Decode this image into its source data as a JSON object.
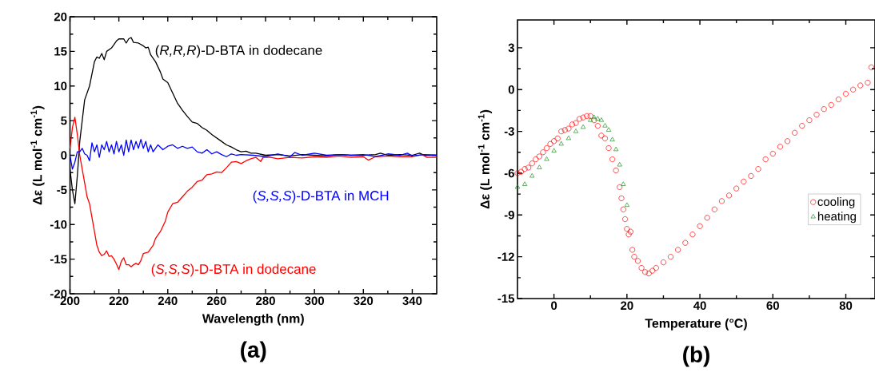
{
  "chart_data": [
    {
      "type": "line",
      "title": "(a)",
      "xlabel": "Wavelength (nm)",
      "ylabel": "Δε (L mol$^{-1}$ cm$^{-1}$)",
      "xlim": [
        200,
        350
      ],
      "ylim": [
        -20,
        20
      ],
      "xticks": [
        200,
        220,
        240,
        260,
        280,
        300,
        320,
        340
      ],
      "yticks": [
        -20,
        -15,
        -10,
        -5,
        0,
        5,
        10,
        15,
        20
      ],
      "series": [
        {
          "name": "(*R,R,R*)-D-BTA in dodecane",
          "color": "#000000",
          "x": [
            200,
            201,
            202,
            203,
            204,
            205,
            206,
            208,
            210,
            211,
            212,
            213,
            214,
            215,
            217,
            219,
            220,
            222,
            223,
            224,
            225,
            226,
            228,
            230,
            231,
            232,
            233,
            235,
            237,
            238,
            240,
            242,
            244,
            246,
            248,
            250,
            252,
            254,
            256,
            258,
            260,
            262,
            264,
            266,
            268,
            270,
            272,
            274,
            276,
            280,
            285,
            290,
            295,
            300,
            305,
            310,
            315,
            320,
            325,
            327,
            330,
            335,
            340,
            343,
            345,
            350
          ],
          "values": [
            -2,
            -5,
            -7,
            -3,
            2,
            5,
            8,
            10,
            13.5,
            14.2,
            14,
            14.7,
            13.8,
            15,
            15.5,
            16.5,
            16.8,
            16.8,
            16.2,
            16.8,
            17,
            16.3,
            16.2,
            15.8,
            15.5,
            15.6,
            14.5,
            13.5,
            12,
            11,
            10.5,
            9,
            7.5,
            6.5,
            5.6,
            4.8,
            4.6,
            4,
            3.6,
            3,
            2.5,
            2,
            1.5,
            1.2,
            0.8,
            0.5,
            0.6,
            0.3,
            0.3,
            0,
            0.1,
            -0.1,
            0.1,
            0,
            -0.1,
            0.1,
            0,
            0,
            0.1,
            0.3,
            0,
            0.1,
            0,
            0.3,
            0,
            0
          ]
        },
        {
          "name": "(*S,S,S*)-D-BTA in dodecane",
          "color": "#ff0000",
          "x": [
            200,
            201,
            202,
            203,
            204,
            205,
            206,
            207,
            208,
            209,
            210,
            211,
            212,
            213,
            214,
            215,
            216,
            217,
            218,
            219,
            220,
            221,
            222,
            223,
            224,
            225,
            226,
            227,
            228,
            229,
            230,
            232,
            234,
            235,
            237,
            239,
            240,
            242,
            244,
            246,
            248,
            250,
            252,
            254,
            256,
            258,
            260,
            262,
            264,
            266,
            268,
            270,
            272,
            274,
            276,
            278,
            279,
            282,
            285,
            290,
            295,
            300,
            305,
            310,
            315,
            320,
            322,
            325,
            330,
            335,
            340,
            344,
            346,
            350
          ],
          "values": [
            1,
            4,
            5.5,
            3,
            0,
            -2,
            -4,
            -6,
            -7,
            -9,
            -11,
            -13,
            -14,
            -14.5,
            -14.3,
            -13.8,
            -14.6,
            -14.5,
            -15,
            -15.7,
            -16.5,
            -15.3,
            -14.8,
            -15.8,
            -15.8,
            -16.1,
            -15.8,
            -15.6,
            -15.8,
            -15.2,
            -14.2,
            -14,
            -13,
            -12,
            -11,
            -9.5,
            -8.2,
            -7,
            -6.8,
            -6,
            -5.2,
            -4.6,
            -3.8,
            -3.6,
            -2.8,
            -2.7,
            -2.4,
            -2.5,
            -1.8,
            -1,
            -0.9,
            -1.2,
            -0.8,
            -0.5,
            -0.3,
            -0.9,
            -0.3,
            -0.3,
            -0.5,
            -0.3,
            -0.4,
            -0.2,
            -0.3,
            -0.1,
            -0.3,
            -0.2,
            -0.7,
            -0.2,
            -0.1,
            -0.2,
            -0.2,
            0.1,
            -0.3,
            -0.3
          ]
        },
        {
          "name": "(*S,S,S*)-D-BTA in MCH",
          "color": "#0000ff",
          "x": [
            200,
            201,
            202,
            203,
            204,
            205,
            206,
            207,
            208,
            209,
            210,
            211,
            212,
            213,
            214,
            215,
            216,
            217,
            218,
            219,
            220,
            221,
            222,
            223,
            224,
            225,
            226,
            227,
            228,
            229,
            230,
            231,
            232,
            233,
            234,
            236,
            238,
            240,
            242,
            244,
            246,
            248,
            250,
            252,
            254,
            256,
            258,
            260,
            262,
            264,
            266,
            268,
            270,
            275,
            280,
            285,
            290,
            292,
            295,
            300,
            305,
            310,
            315,
            320,
            325,
            330,
            335,
            338,
            340,
            345,
            350
          ],
          "values": [
            0,
            -2,
            -1,
            0.5,
            0.5,
            1,
            0.2,
            0,
            -0.8,
            1.8,
            0.5,
            1.5,
            -0.3,
            1.5,
            0.8,
            2,
            0.5,
            1.5,
            0.2,
            2,
            0.5,
            1.5,
            0,
            2.2,
            0.5,
            2.2,
            0.8,
            2,
            1,
            2.3,
            1,
            2,
            0.5,
            1.5,
            0.5,
            1.5,
            0.8,
            1.3,
            1.5,
            1,
            1.3,
            1,
            1.2,
            0.5,
            0.3,
            0.8,
            0.2,
            0.5,
            0.1,
            -0.2,
            0.2,
            0,
            0.1,
            0,
            -0.2,
            0.2,
            -0.2,
            0.4,
            0,
            0.3,
            0,
            0.1,
            0,
            0.1,
            -0.2,
            0.2,
            0,
            0.3,
            -0.1,
            0.1,
            0
          ]
        }
      ]
    },
    {
      "type": "scatter",
      "title": "(b)",
      "xlabel": "Temperature (°C)",
      "ylabel": "Δε (L mol$^{-1}$ cm$^{-1}$)",
      "xlim": [
        -10,
        88
      ],
      "ylim": [
        -15,
        5
      ],
      "xticks": [
        0,
        20,
        40,
        60,
        80
      ],
      "yticks": [
        -15,
        -12,
        -9,
        -6,
        -3,
        0,
        3
      ],
      "legend": "right",
      "series": [
        {
          "name": "cooling",
          "color": "#ff0000",
          "marker": "circle",
          "x": [
            -10,
            -9,
            -8,
            -7,
            -6,
            -5,
            -4,
            -3,
            -2,
            -1,
            0,
            1,
            2,
            3,
            4,
            5,
            6,
            7,
            8,
            9,
            10,
            11,
            12,
            13,
            14,
            15,
            16,
            17,
            18,
            18.5,
            19,
            19.5,
            20,
            20.5,
            21,
            21.5,
            22,
            23,
            24,
            25,
            26,
            27,
            28,
            30,
            32,
            34,
            36,
            38,
            40,
            42,
            44,
            46,
            48,
            50,
            52,
            54,
            56,
            58,
            60,
            62,
            64,
            66,
            68,
            70,
            72,
            74,
            76,
            78,
            80,
            82,
            84,
            86,
            87
          ],
          "values": [
            -6,
            -5.9,
            -5.7,
            -5.6,
            -5.3,
            -5,
            -4.8,
            -4.5,
            -4.2,
            -3.9,
            -3.7,
            -3.5,
            -3,
            -2.9,
            -2.8,
            -2.5,
            -2.4,
            -2.1,
            -2,
            -1.9,
            -1.9,
            -2.2,
            -2.6,
            -3.3,
            -3.5,
            -4.2,
            -5,
            -5.8,
            -7,
            -7.8,
            -8.6,
            -9.3,
            -10,
            -10.4,
            -10.2,
            -11.5,
            -12,
            -12.3,
            -12.8,
            -13.1,
            -13.2,
            -13,
            -12.8,
            -12.4,
            -12,
            -11.5,
            -11,
            -10.4,
            -9.8,
            -9.2,
            -8.6,
            -8,
            -7.6,
            -7.1,
            -6.6,
            -6.2,
            -5.7,
            -5,
            -4.6,
            -4.1,
            -3.7,
            -3.1,
            -2.6,
            -2.2,
            -1.8,
            -1.4,
            -1.1,
            -0.7,
            -0.3,
            0,
            0.3,
            0.5,
            1.6
          ]
        },
        {
          "name": "heating",
          "color": "#228b22",
          "marker": "triangle",
          "x": [
            -10,
            -8,
            -6,
            -4,
            -2,
            0,
            2,
            4,
            6,
            8,
            10,
            11,
            12,
            13,
            14,
            15,
            16,
            17,
            18,
            19,
            20
          ],
          "values": [
            -7,
            -6.8,
            -6.2,
            -5.6,
            -5,
            -4.4,
            -3.9,
            -3.5,
            -3,
            -2.7,
            -2.2,
            -2,
            -2.1,
            -2.2,
            -2.6,
            -2.9,
            -3.6,
            -4.3,
            -5.4,
            -6.8,
            -8.3
          ]
        }
      ]
    }
  ]
}
